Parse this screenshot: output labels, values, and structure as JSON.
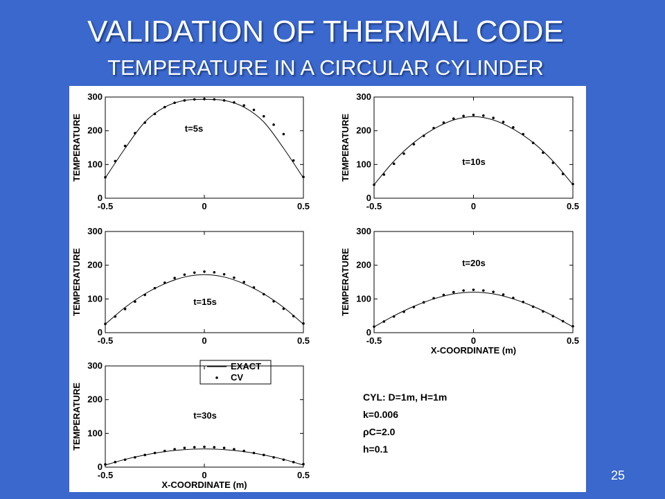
{
  "slide": {
    "title": "VALIDATION OF THERMAL CODE",
    "subtitle": "TEMPERATURE IN A CIRCULAR CYLINDER",
    "page_number": "25"
  },
  "colors": {
    "background": "#3a68cc",
    "title": "#ffffff",
    "plot_ink": "#000000",
    "figure_bg": "#ffffff"
  },
  "legend": {
    "exact_label": "EXACT",
    "cv_label": "CV"
  },
  "notes": {
    "lines": [
      "CYL: D=1m, H=1m",
      "k=0.006",
      "ρC=2.0",
      "h=0.1"
    ]
  },
  "chart_data": [
    {
      "type": "line",
      "annotation": "t=5s",
      "xlabel": "",
      "ylabel": "TEMPERATURE",
      "xlim": [
        -0.5,
        0.5
      ],
      "ylim": [
        0,
        300
      ],
      "xticks": [
        "-0.5",
        "0",
        "0.5"
      ],
      "yticks": [
        "0",
        "100",
        "200",
        "300"
      ],
      "exact_x": [
        -0.5,
        -0.4,
        -0.3,
        -0.2,
        -0.1,
        0,
        0.1,
        0.2,
        0.3,
        0.4,
        0.5
      ],
      "exact_y": [
        60,
        148,
        226,
        270,
        290,
        293,
        290,
        270,
        226,
        148,
        60
      ],
      "cv_x": [
        -0.5,
        -0.45,
        -0.4,
        -0.35,
        -0.3,
        -0.25,
        -0.2,
        -0.15,
        -0.1,
        -0.05,
        0,
        0.05,
        0.1,
        0.15,
        0.2,
        0.25,
        0.3,
        0.35,
        0.4,
        0.45,
        0.5
      ],
      "cv_y": [
        62,
        110,
        155,
        193,
        224,
        250,
        270,
        283,
        290,
        293,
        294,
        293,
        290,
        284,
        275,
        262,
        243,
        218,
        190,
        112,
        63
      ]
    },
    {
      "type": "line",
      "annotation": "t=10s",
      "xlabel": "",
      "ylabel": "TEMPERATURE",
      "xlim": [
        -0.5,
        0.5
      ],
      "ylim": [
        0,
        300
      ],
      "xticks": [
        "-0.5",
        "0",
        "0.5"
      ],
      "yticks": [
        "0",
        "100",
        "200",
        "300"
      ],
      "exact_x": [
        -0.5,
        -0.4,
        -0.3,
        -0.2,
        -0.1,
        0,
        0.1,
        0.2,
        0.3,
        0.4,
        0.5
      ],
      "exact_y": [
        40,
        110,
        165,
        205,
        232,
        242,
        232,
        205,
        165,
        110,
        40
      ],
      "cv_x": [
        -0.5,
        -0.45,
        -0.4,
        -0.35,
        -0.3,
        -0.25,
        -0.2,
        -0.15,
        -0.1,
        -0.05,
        0,
        0.05,
        0.1,
        0.15,
        0.2,
        0.25,
        0.3,
        0.35,
        0.4,
        0.45,
        0.5
      ],
      "cv_y": [
        40,
        70,
        102,
        132,
        160,
        185,
        208,
        224,
        236,
        244,
        247,
        245,
        238,
        226,
        210,
        190,
        164,
        135,
        105,
        72,
        42
      ]
    },
    {
      "type": "line",
      "annotation": "t=15s",
      "xlabel": "",
      "ylabel": "TEMPERATURE",
      "xlim": [
        -0.5,
        0.5
      ],
      "ylim": [
        0,
        300
      ],
      "xticks": [
        "-0.5",
        "0",
        "0.5"
      ],
      "yticks": [
        "0",
        "100",
        "200",
        "300"
      ],
      "exact_x": [
        -0.5,
        -0.4,
        -0.3,
        -0.2,
        -0.1,
        0,
        0.1,
        0.2,
        0.3,
        0.4,
        0.5
      ],
      "exact_y": [
        25,
        75,
        115,
        145,
        165,
        172,
        165,
        145,
        115,
        75,
        25
      ],
      "cv_x": [
        -0.5,
        -0.45,
        -0.4,
        -0.35,
        -0.3,
        -0.25,
        -0.2,
        -0.15,
        -0.1,
        -0.05,
        0,
        0.05,
        0.1,
        0.15,
        0.2,
        0.25,
        0.3,
        0.35,
        0.4,
        0.45,
        0.5
      ],
      "cv_y": [
        26,
        48,
        70,
        92,
        112,
        132,
        148,
        162,
        172,
        178,
        181,
        179,
        173,
        163,
        150,
        134,
        114,
        93,
        71,
        49,
        27
      ]
    },
    {
      "type": "line",
      "annotation": "t=20s",
      "xlabel": "X-COORDINATE (m)",
      "ylabel": "TEMPERATURE",
      "xlim": [
        -0.5,
        0.5
      ],
      "ylim": [
        0,
        300
      ],
      "xticks": [
        "-0.5",
        "0",
        "0.5"
      ],
      "yticks": [
        "0",
        "100",
        "200",
        "300"
      ],
      "exact_x": [
        -0.5,
        -0.4,
        -0.3,
        -0.2,
        -0.1,
        0,
        0.1,
        0.2,
        0.3,
        0.4,
        0.5
      ],
      "exact_y": [
        17,
        50,
        78,
        100,
        115,
        120,
        115,
        100,
        78,
        50,
        17
      ],
      "cv_x": [
        -0.5,
        -0.45,
        -0.4,
        -0.35,
        -0.3,
        -0.25,
        -0.2,
        -0.15,
        -0.1,
        -0.05,
        0,
        0.05,
        0.1,
        0.15,
        0.2,
        0.25,
        0.3,
        0.35,
        0.4,
        0.45,
        0.5
      ],
      "cv_y": [
        18,
        33,
        48,
        62,
        76,
        90,
        102,
        112,
        120,
        125,
        127,
        125,
        121,
        113,
        103,
        91,
        77,
        63,
        49,
        34,
        19
      ]
    },
    {
      "type": "line",
      "annotation": "t=30s",
      "xlabel": "X-COORDINATE (m)",
      "ylabel": "TEMPERATURE",
      "xlim": [
        -0.5,
        0.5
      ],
      "ylim": [
        0,
        300
      ],
      "xticks": [
        "-0.5",
        "0",
        "0.5"
      ],
      "yticks": [
        "0",
        "100",
        "200",
        "300"
      ],
      "exact_x": [
        -0.5,
        -0.4,
        -0.3,
        -0.2,
        -0.1,
        0,
        0.1,
        0.2,
        0.3,
        0.4,
        0.5
      ],
      "exact_y": [
        6,
        23,
        36,
        46,
        52,
        54,
        52,
        46,
        36,
        23,
        6
      ],
      "cv_x": [
        -0.5,
        -0.45,
        -0.4,
        -0.35,
        -0.3,
        -0.25,
        -0.2,
        -0.15,
        -0.1,
        -0.05,
        0,
        0.05,
        0.1,
        0.15,
        0.2,
        0.25,
        0.3,
        0.35,
        0.4,
        0.45,
        0.5
      ],
      "cv_y": [
        8,
        15,
        22,
        29,
        36,
        42,
        48,
        53,
        57,
        59,
        60,
        59,
        57,
        53,
        48,
        42,
        36,
        29,
        22,
        15,
        9
      ]
    }
  ]
}
